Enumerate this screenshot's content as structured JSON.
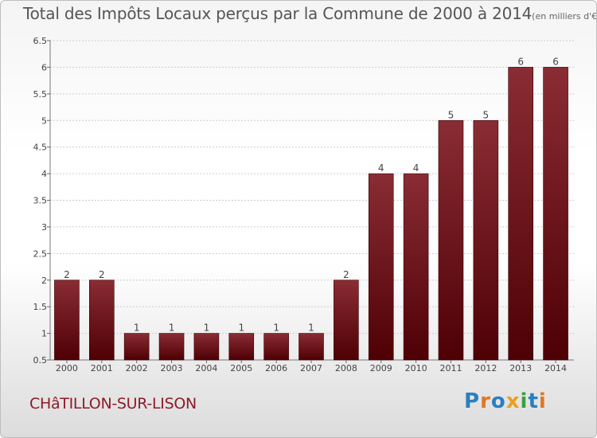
{
  "title": "Total des Impôts Locaux perçus par la Commune de 2000 à 2014",
  "title_unit": "(en milliers d'€)",
  "commune": "CHâTILLON-SUR-LISON",
  "logo": {
    "text": "Proxiti",
    "letters": [
      {
        "ch": "P",
        "color": "#2a7fc0"
      },
      {
        "ch": "r",
        "color": "#e07820"
      },
      {
        "ch": "o",
        "color": "#2a7fc0"
      },
      {
        "ch": "x",
        "color": "#e8a020"
      },
      {
        "ch": "i",
        "color": "#3aa040"
      },
      {
        "ch": "t",
        "color": "#2a7fc0"
      },
      {
        "ch": "i",
        "color": "#e07820"
      }
    ]
  },
  "colors": {
    "bar_top": "#8a2c34",
    "bar_bottom": "#4e0005",
    "grid": "#cccccc",
    "axis_text": "#444444"
  },
  "chart_data": {
    "type": "bar",
    "title": "Total des Impôts Locaux perçus par la Commune de 2000 à 2014",
    "xlabel": "",
    "ylabel": "en milliers d'€",
    "ylim": [
      0.5,
      6.5
    ],
    "yticks": [
      "0.5",
      "1",
      "1.5",
      "2",
      "2.5",
      "3",
      "3.5",
      "4",
      "4.5",
      "5",
      "5.5",
      "6",
      "6.5"
    ],
    "categories": [
      "2000",
      "2001",
      "2002",
      "2003",
      "2004",
      "2005",
      "2006",
      "2007",
      "2008",
      "2009",
      "2010",
      "2011",
      "2012",
      "2013",
      "2014"
    ],
    "values": [
      2,
      2,
      1,
      1,
      1,
      1,
      1,
      1,
      2,
      4,
      4,
      5,
      5,
      6,
      6
    ],
    "labels": [
      "2",
      "2",
      "1",
      "1",
      "1",
      "1",
      "1",
      "1",
      "2",
      "4",
      "4",
      "5",
      "5",
      "6",
      "6"
    ],
    "grid": true
  }
}
